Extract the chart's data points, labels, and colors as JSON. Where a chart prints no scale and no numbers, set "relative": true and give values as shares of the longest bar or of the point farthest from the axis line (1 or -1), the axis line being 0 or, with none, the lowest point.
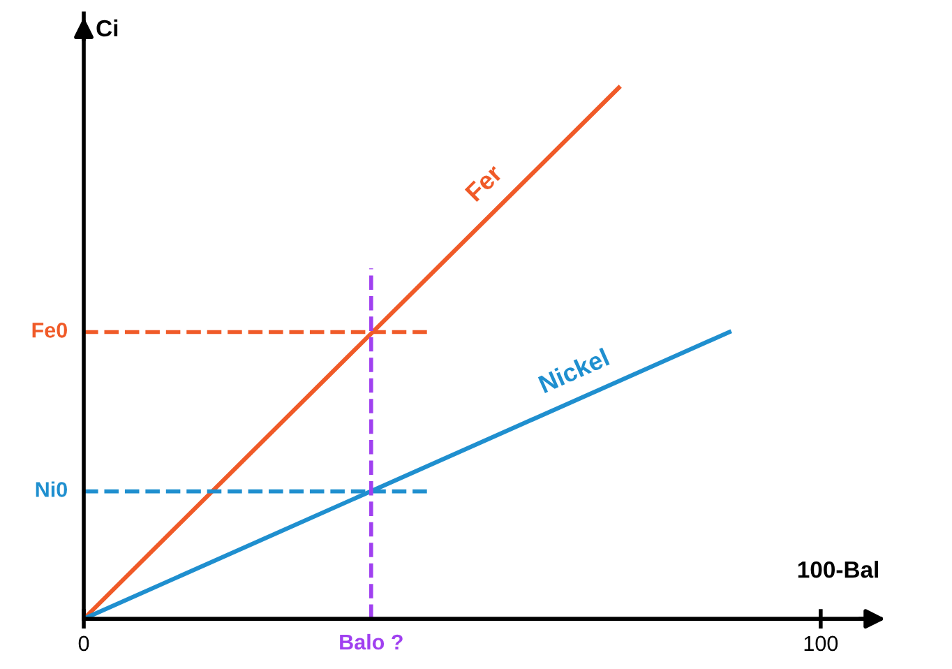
{
  "chart_data": {
    "type": "line",
    "relative": true,
    "xlabel": "100-Bal",
    "ylabel": "Ci",
    "xlim": [
      0,
      108
    ],
    "xticks": [
      0,
      100
    ],
    "tick_labels": "x",
    "grid": false,
    "legend": false,
    "marker": "none",
    "line_style": "solid",
    "series": [
      {
        "name": "Fer",
        "color": "#f05a28",
        "x": [
          0,
          72.6
        ],
        "values": [
          0,
          1
        ]
      },
      {
        "name": "Nickel",
        "color": "#1f8fcf",
        "x": [
          0,
          87.6
        ],
        "values": [
          0,
          0.54
        ]
      }
    ],
    "ref_lines": [
      {
        "axis": "y",
        "value": 0.54,
        "label": "Fe0",
        "color": "#f05a28",
        "line_style": "dashed"
      },
      {
        "axis": "y",
        "value": 0.24,
        "label": "Ni0",
        "color": "#1f8fcf",
        "line_style": "dashed"
      },
      {
        "axis": "x",
        "value": 39,
        "label": "Balo ?",
        "color": "#a040f0",
        "line_style": "dashed"
      }
    ]
  }
}
